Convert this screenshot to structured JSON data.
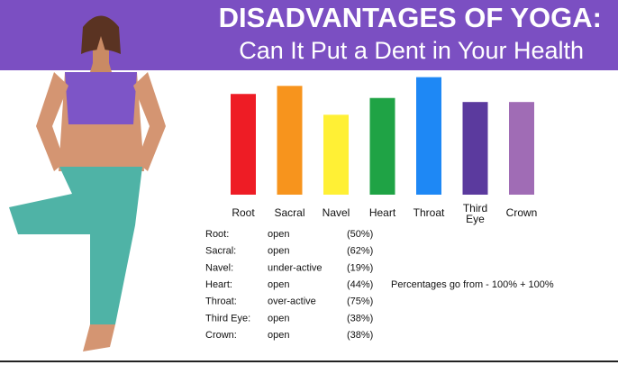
{
  "chart_data": {
    "type": "bar",
    "title": "DISADVANTAGES OF YOGA:",
    "subtitle": "Can It Put a Dent in Your Health",
    "categories": [
      "Root",
      "Sacral",
      "Navel",
      "Heart",
      "Throat",
      "Third Eye",
      "Crown"
    ],
    "values": [
      50,
      62,
      19,
      44,
      75,
      38,
      38
    ],
    "value_labels": [
      "(50%)",
      "(62%)",
      "(19%)",
      "(44%)",
      "(75%)",
      "(38%)",
      "(38%)"
    ],
    "row_labels": [
      "Root:",
      "Sacral:",
      "Navel:",
      "Heart:",
      "Throat:",
      "Third Eye:",
      "Crown:"
    ],
    "states": [
      "open",
      "open",
      "under-active",
      "open",
      "over-active",
      "open",
      "open"
    ],
    "colors": [
      "#ee1c25",
      "#f7941d",
      "#fff035",
      "#1fa345",
      "#1e88f5",
      "#5b3a9e",
      "#a06cb5"
    ],
    "ylim": [
      -100,
      100
    ],
    "annotation": "Percentages go from - 100% + 100%"
  }
}
